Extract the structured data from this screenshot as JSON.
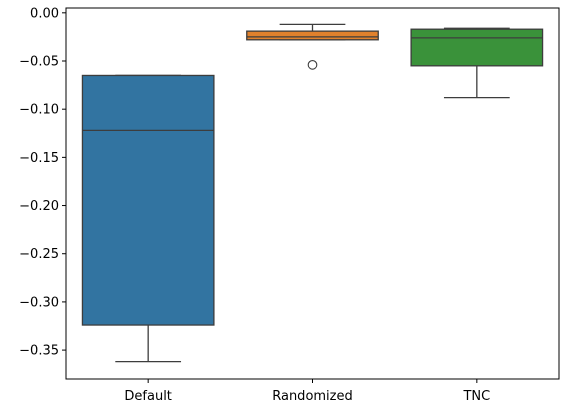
{
  "chart_data": {
    "type": "box",
    "title": "",
    "xlabel": "",
    "ylabel": "",
    "ylim": [
      -0.38,
      0.005
    ],
    "yticks": [
      0.0,
      -0.05,
      -0.1,
      -0.15,
      -0.2,
      -0.25,
      -0.3,
      -0.35
    ],
    "ytick_labels": [
      "0.00",
      "−0.05",
      "−0.10",
      "−0.15",
      "−0.20",
      "−0.25",
      "−0.30",
      "−0.35"
    ],
    "categories": [
      "Default",
      "Randomized",
      "TNC"
    ],
    "grid": false,
    "legend": "none",
    "series": [
      {
        "category": "Default",
        "color": "#3274a1",
        "whisker_low": -0.362,
        "q1": -0.324,
        "median": -0.122,
        "q3": -0.065,
        "whisker_high": -0.065,
        "outliers": []
      },
      {
        "category": "Randomized",
        "color": "#e1812c",
        "whisker_low": -0.028,
        "q1": -0.028,
        "median": -0.025,
        "q3": -0.019,
        "whisker_high": -0.012,
        "outliers": [
          -0.054
        ]
      },
      {
        "category": "TNC",
        "color": "#3a923a",
        "whisker_low": -0.088,
        "q1": -0.055,
        "median": -0.026,
        "q3": -0.017,
        "whisker_high": -0.016,
        "outliers": []
      }
    ]
  }
}
